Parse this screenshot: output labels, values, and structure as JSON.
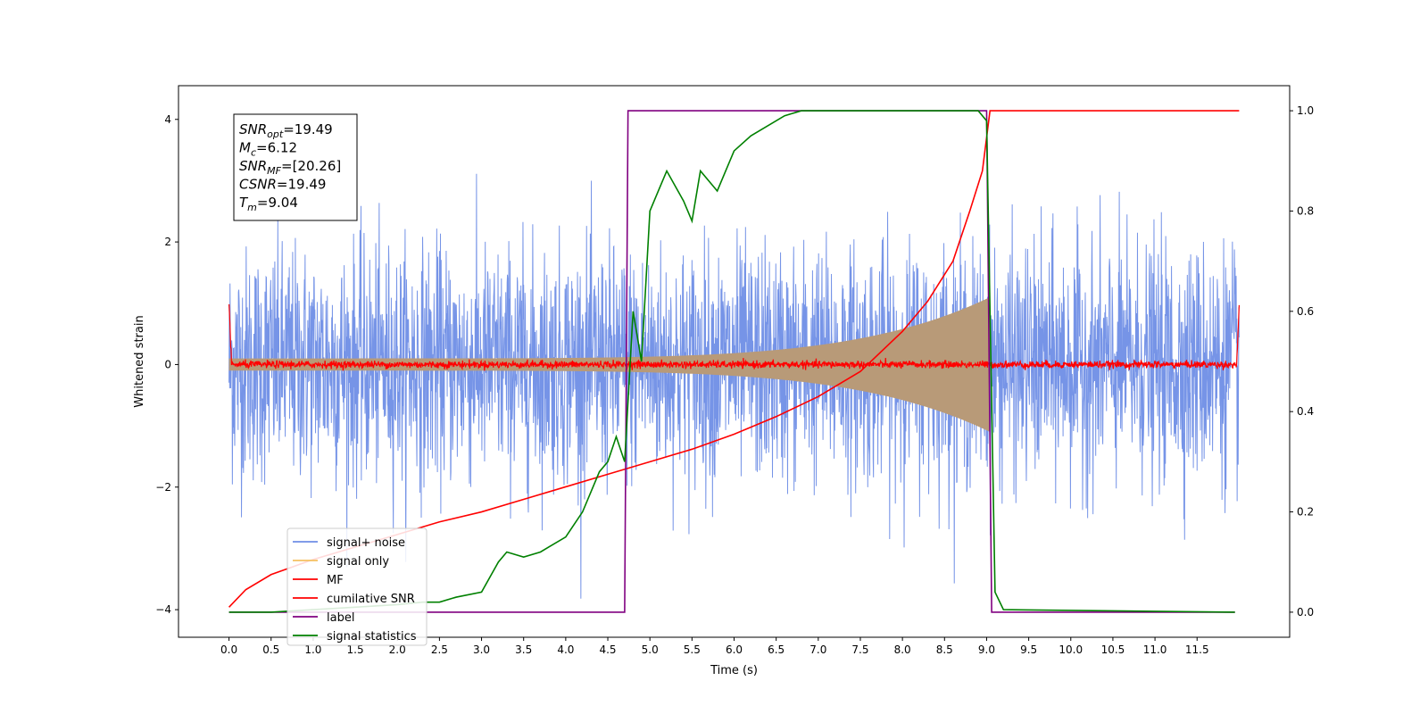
{
  "chart_data": {
    "type": "line",
    "title": "",
    "xlabel": "Time (s)",
    "ylabel": "Whitened strain",
    "xlim": [
      -0.6,
      12.6
    ],
    "ylim": [
      -4.45,
      4.55
    ],
    "ylim_right": [
      -0.05,
      1.05
    ],
    "x_ticks": [
      0.0,
      0.5,
      1.0,
      1.5,
      2.0,
      2.5,
      3.0,
      3.5,
      4.0,
      4.5,
      5.0,
      5.5,
      6.0,
      6.5,
      7.0,
      7.5,
      8.0,
      8.5,
      9.0,
      9.5,
      10.0,
      10.5,
      11.0,
      11.5
    ],
    "x_tick_labels": [
      "0.0",
      "0.5",
      "1.0",
      "1.5",
      "2.0",
      "2.5",
      "3.0",
      "3.5",
      "4.0",
      "4.5",
      "5.0",
      "5.5",
      "6.0",
      "6.5",
      "7.0",
      "7.5",
      "8.0",
      "8.5",
      "9.0",
      "9.5",
      "10.0",
      "10.5",
      "11.0",
      "11.5"
    ],
    "y_ticks_left": [
      -4,
      -2,
      0,
      2,
      4
    ],
    "y_tick_labels_left": [
      "−4",
      "−2",
      "0",
      "2",
      "4"
    ],
    "y_ticks_right": [
      0.0,
      0.2,
      0.4,
      0.6,
      0.8,
      1.0
    ],
    "y_tick_labels_right": [
      "0.0",
      "0.2",
      "0.4",
      "0.6",
      "0.8",
      "1.0"
    ],
    "grid": false,
    "legend_position": "lower-left",
    "info_box": {
      "lines": [
        {
          "main": "SNR",
          "sub": "opt",
          "value": "=19.49"
        },
        {
          "main": "M",
          "sub": "c",
          "value": "=6.12"
        },
        {
          "main": "SNR",
          "sub": "MF",
          "value": "=[20.26]"
        },
        {
          "main": "CSNR",
          "sub": "",
          "value": "=19.49"
        },
        {
          "main": "T",
          "sub": "m",
          "value": "=9.04"
        }
      ]
    },
    "series": [
      {
        "name": "signal+ noise",
        "axis": "left",
        "color": "#6f8ee6",
        "render": "noise",
        "x_range": [
          0.0,
          12.0
        ],
        "std": 0.95,
        "max_abs": 4.1
      },
      {
        "name": "signal only",
        "axis": "left",
        "color": "#f5c060",
        "render": "chirp",
        "x_range": [
          0.0,
          9.04
        ],
        "amplitude_start": 0.1,
        "amplitude_peak": 1.1
      },
      {
        "name": "MF",
        "axis": "left",
        "color": "#ff0000",
        "render": "mf",
        "x_range": [
          0.0,
          12.0
        ],
        "edge_values": [
          1.0,
          0.95
        ],
        "noise_std": 0.03
      },
      {
        "name": "cumilative SNR",
        "axis": "right",
        "color": "#ff0000",
        "render": "line",
        "x": [
          0.0,
          0.2,
          0.5,
          1.0,
          1.5,
          2.0,
          2.5,
          3.0,
          3.5,
          4.0,
          4.5,
          5.0,
          5.5,
          6.0,
          6.5,
          7.0,
          7.5,
          8.0,
          8.3,
          8.6,
          8.8,
          8.95,
          9.04,
          9.1,
          10.0,
          11.0,
          12.0
        ],
        "y": [
          0.01,
          0.045,
          0.075,
          0.105,
          0.13,
          0.155,
          0.18,
          0.2,
          0.225,
          0.25,
          0.275,
          0.3,
          0.325,
          0.355,
          0.39,
          0.43,
          0.48,
          0.56,
          0.62,
          0.7,
          0.8,
          0.88,
          1.0,
          1.0,
          1.0,
          1.0,
          1.0
        ]
      },
      {
        "name": "label",
        "axis": "right",
        "color": "#800080",
        "render": "line",
        "x": [
          0.0,
          4.7,
          4.74,
          9.0,
          9.06,
          11.95
        ],
        "y": [
          0.0,
          0.0,
          1.0,
          1.0,
          0.0,
          0.0
        ]
      },
      {
        "name": "signal statistics",
        "axis": "right",
        "color": "#008000",
        "render": "line",
        "x": [
          0.0,
          0.5,
          1.0,
          1.5,
          2.0,
          2.3,
          2.5,
          2.7,
          3.0,
          3.2,
          3.3,
          3.5,
          3.7,
          3.8,
          4.0,
          4.2,
          4.4,
          4.5,
          4.6,
          4.7,
          4.8,
          4.9,
          5.0,
          5.1,
          5.2,
          5.3,
          5.4,
          5.5,
          5.6,
          5.8,
          6.0,
          6.2,
          6.4,
          6.6,
          6.8,
          7.0,
          8.0,
          8.9,
          9.0,
          9.1,
          9.2,
          11.95
        ],
        "y": [
          0.0,
          0.0,
          0.005,
          0.01,
          0.015,
          0.02,
          0.02,
          0.03,
          0.04,
          0.1,
          0.12,
          0.11,
          0.12,
          0.13,
          0.15,
          0.2,
          0.28,
          0.3,
          0.35,
          0.3,
          0.6,
          0.5,
          0.8,
          0.84,
          0.88,
          0.85,
          0.82,
          0.78,
          0.88,
          0.84,
          0.92,
          0.95,
          0.97,
          0.99,
          1.0,
          1.0,
          1.0,
          1.0,
          0.98,
          0.04,
          0.005,
          0.0
        ]
      }
    ]
  }
}
